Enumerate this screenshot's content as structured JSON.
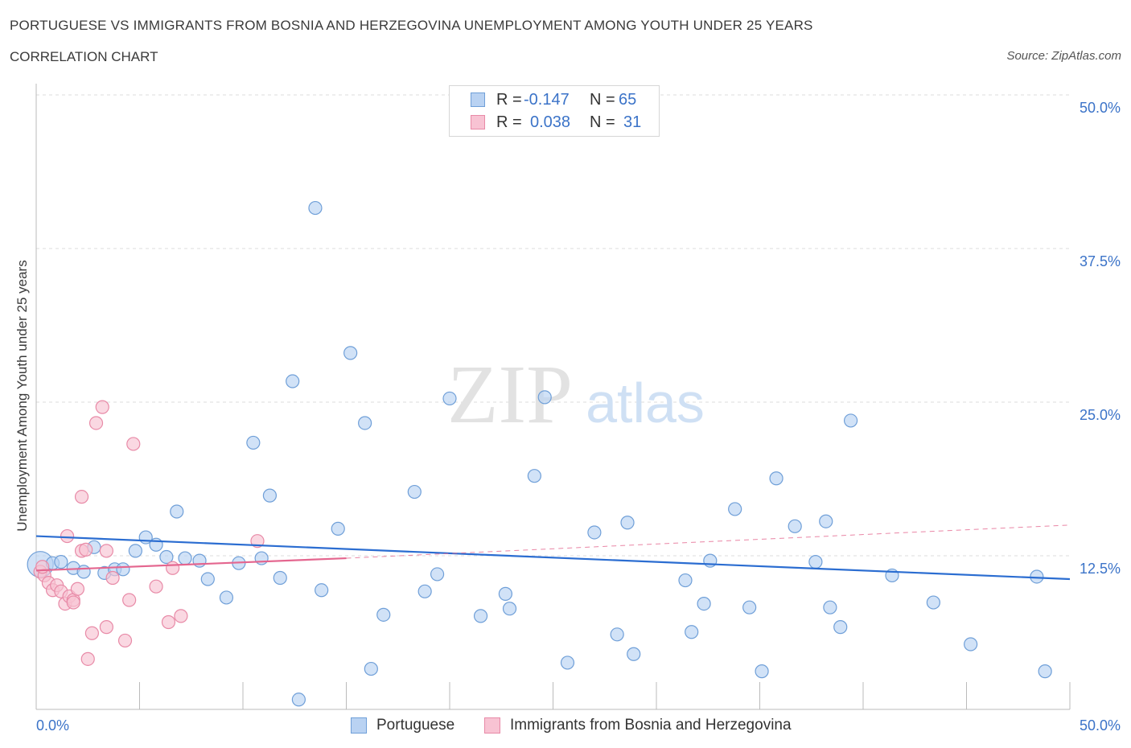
{
  "header": {
    "title": "PORTUGUESE VS IMMIGRANTS FROM BOSNIA AND HERZEGOVINA UNEMPLOYMENT AMONG YOUTH UNDER 25 YEARS",
    "subtitle": "CORRELATION CHART",
    "source": "Source: ZipAtlas.com"
  },
  "legend": {
    "rows": [
      {
        "r_label": "R =",
        "r_value": "-0.147",
        "n_label": "N =",
        "n_value": "65"
      },
      {
        "r_label": "R =",
        "r_value": "0.038",
        "n_label": "N =",
        "n_value": "31"
      }
    ],
    "series_names": [
      "Portuguese",
      "Immigrants from Bosnia and Herzegovina"
    ]
  },
  "watermark": {
    "zip": "ZIP",
    "atlas": "atlas"
  },
  "colors": {
    "blue_fill": "#b9d2f2",
    "blue_stroke": "#6f9fd8",
    "blue_line": "#2b6dd1",
    "pink_fill": "#f8c3d3",
    "pink_stroke": "#e88aa7",
    "pink_line": "#e4668f",
    "tick_text": "#3b73c8",
    "grid": "#dddddd"
  },
  "chart_data": {
    "type": "scatter",
    "xlabel": "",
    "ylabel": "Unemployment Among Youth under 25 years",
    "xlim": [
      0,
      50
    ],
    "ylim": [
      0,
      50
    ],
    "x_tick_labels": [
      "0.0%",
      "50.0%"
    ],
    "y_tick_labels": [
      "12.5%",
      "25.0%",
      "37.5%",
      "50.0%"
    ],
    "y_ticks": [
      12.5,
      25,
      37.5,
      50
    ],
    "grid": true,
    "legend_placement": "top-center",
    "series": [
      {
        "name": "Portuguese",
        "color": "#6f9fd8",
        "trend": {
          "x": [
            0,
            50
          ],
          "y": [
            14.1,
            10.6
          ],
          "dashed_extension": false
        },
        "points": [
          {
            "x": 0.2,
            "y": 11.8,
            "big": true
          },
          {
            "x": 0.8,
            "y": 11.9
          },
          {
            "x": 1.2,
            "y": 12.0
          },
          {
            "x": 1.8,
            "y": 11.5
          },
          {
            "x": 2.3,
            "y": 11.2
          },
          {
            "x": 2.8,
            "y": 13.2
          },
          {
            "x": 3.3,
            "y": 11.1
          },
          {
            "x": 3.8,
            "y": 11.4
          },
          {
            "x": 4.2,
            "y": 11.4
          },
          {
            "x": 4.8,
            "y": 12.9
          },
          {
            "x": 5.3,
            "y": 14.0
          },
          {
            "x": 5.8,
            "y": 13.4
          },
          {
            "x": 6.3,
            "y": 12.4
          },
          {
            "x": 6.8,
            "y": 16.1
          },
          {
            "x": 7.2,
            "y": 12.3
          },
          {
            "x": 7.9,
            "y": 12.1
          },
          {
            "x": 8.3,
            "y": 10.6
          },
          {
            "x": 9.2,
            "y": 9.1
          },
          {
            "x": 9.8,
            "y": 11.9
          },
          {
            "x": 10.5,
            "y": 21.7
          },
          {
            "x": 10.9,
            "y": 12.3
          },
          {
            "x": 11.3,
            "y": 17.4
          },
          {
            "x": 11.8,
            "y": 10.7
          },
          {
            "x": 12.4,
            "y": 26.7
          },
          {
            "x": 12.7,
            "y": 0.8
          },
          {
            "x": 13.5,
            "y": 40.8
          },
          {
            "x": 13.8,
            "y": 9.7
          },
          {
            "x": 14.6,
            "y": 14.7
          },
          {
            "x": 15.2,
            "y": 29.0
          },
          {
            "x": 15.9,
            "y": 23.3
          },
          {
            "x": 16.2,
            "y": 3.3
          },
          {
            "x": 16.8,
            "y": 7.7
          },
          {
            "x": 18.3,
            "y": 17.7
          },
          {
            "x": 18.8,
            "y": 9.6
          },
          {
            "x": 19.4,
            "y": 11.0
          },
          {
            "x": 20.0,
            "y": 25.3
          },
          {
            "x": 21.5,
            "y": 7.6
          },
          {
            "x": 22.7,
            "y": 9.4
          },
          {
            "x": 22.9,
            "y": 8.2
          },
          {
            "x": 24.1,
            "y": 19.0
          },
          {
            "x": 24.6,
            "y": 25.4
          },
          {
            "x": 25.7,
            "y": 3.8
          },
          {
            "x": 27.0,
            "y": 14.4
          },
          {
            "x": 28.1,
            "y": 6.1
          },
          {
            "x": 28.6,
            "y": 15.2
          },
          {
            "x": 28.9,
            "y": 4.5
          },
          {
            "x": 31.4,
            "y": 10.5
          },
          {
            "x": 31.7,
            "y": 6.3
          },
          {
            "x": 32.3,
            "y": 8.6
          },
          {
            "x": 32.6,
            "y": 12.1
          },
          {
            "x": 33.8,
            "y": 16.3
          },
          {
            "x": 34.5,
            "y": 8.3
          },
          {
            "x": 35.1,
            "y": 3.1
          },
          {
            "x": 35.8,
            "y": 18.8
          },
          {
            "x": 36.7,
            "y": 14.9
          },
          {
            "x": 37.7,
            "y": 12.0
          },
          {
            "x": 38.2,
            "y": 15.3
          },
          {
            "x": 38.4,
            "y": 8.3
          },
          {
            "x": 38.9,
            "y": 6.7
          },
          {
            "x": 39.4,
            "y": 23.5
          },
          {
            "x": 41.4,
            "y": 10.9
          },
          {
            "x": 43.4,
            "y": 8.7
          },
          {
            "x": 48.4,
            "y": 10.8
          },
          {
            "x": 48.8,
            "y": 3.1
          },
          {
            "x": 45.2,
            "y": 5.3
          }
        ]
      },
      {
        "name": "Immigrants from Bosnia and Herzegovina",
        "color": "#e88aa7",
        "trend": {
          "x": [
            0,
            15
          ],
          "y": [
            11.3,
            12.3
          ],
          "dashed_extension": true,
          "dashed_to": [
            50,
            15.0
          ]
        },
        "points": [
          {
            "x": 0.2,
            "y": 11.2
          },
          {
            "x": 0.4,
            "y": 10.9
          },
          {
            "x": 0.6,
            "y": 10.3
          },
          {
            "x": 0.8,
            "y": 9.7
          },
          {
            "x": 1.0,
            "y": 10.1
          },
          {
            "x": 1.2,
            "y": 9.6
          },
          {
            "x": 1.4,
            "y": 8.6
          },
          {
            "x": 1.6,
            "y": 9.2
          },
          {
            "x": 1.8,
            "y": 8.9
          },
          {
            "x": 2.0,
            "y": 9.8
          },
          {
            "x": 2.2,
            "y": 12.9
          },
          {
            "x": 2.4,
            "y": 13.0
          },
          {
            "x": 1.5,
            "y": 14.1
          },
          {
            "x": 2.2,
            "y": 17.3
          },
          {
            "x": 2.9,
            "y": 23.3
          },
          {
            "x": 3.2,
            "y": 24.6
          },
          {
            "x": 4.7,
            "y": 21.6
          },
          {
            "x": 3.4,
            "y": 12.9
          },
          {
            "x": 3.7,
            "y": 10.7
          },
          {
            "x": 2.7,
            "y": 6.2
          },
          {
            "x": 3.4,
            "y": 6.7
          },
          {
            "x": 2.5,
            "y": 4.1
          },
          {
            "x": 4.3,
            "y": 5.6
          },
          {
            "x": 4.5,
            "y": 8.9
          },
          {
            "x": 5.8,
            "y": 10.0
          },
          {
            "x": 6.4,
            "y": 7.1
          },
          {
            "x": 7.0,
            "y": 7.6
          },
          {
            "x": 6.6,
            "y": 11.5
          },
          {
            "x": 10.7,
            "y": 13.7
          },
          {
            "x": 1.8,
            "y": 8.7
          },
          {
            "x": 0.3,
            "y": 11.6
          }
        ]
      }
    ]
  }
}
